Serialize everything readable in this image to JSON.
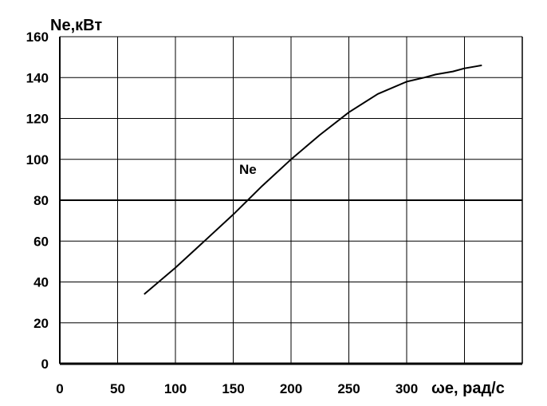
{
  "chart_data": {
    "type": "line",
    "title": "",
    "ylabel": "Ne,кВт",
    "xlabel": "ωe, рад/с",
    "xlim": [
      0,
      400
    ],
    "ylim": [
      0,
      160
    ],
    "x_ticks": [
      "0",
      "50",
      "100",
      "150",
      "200",
      "250",
      "300"
    ],
    "y_ticks": [
      "0",
      "20",
      "40",
      "60",
      "80",
      "100",
      "120",
      "140",
      "160"
    ],
    "grid": true,
    "series": [
      {
        "name": "Ne",
        "x": [
          73,
          100,
          125,
          150,
          175,
          200,
          225,
          250,
          275,
          300,
          315,
          325,
          340,
          350,
          360,
          365
        ],
        "y": [
          34,
          47,
          60,
          73,
          87,
          100,
          112,
          123,
          132,
          138,
          140,
          141.5,
          143,
          144.5,
          145.5,
          146
        ]
      }
    ]
  }
}
